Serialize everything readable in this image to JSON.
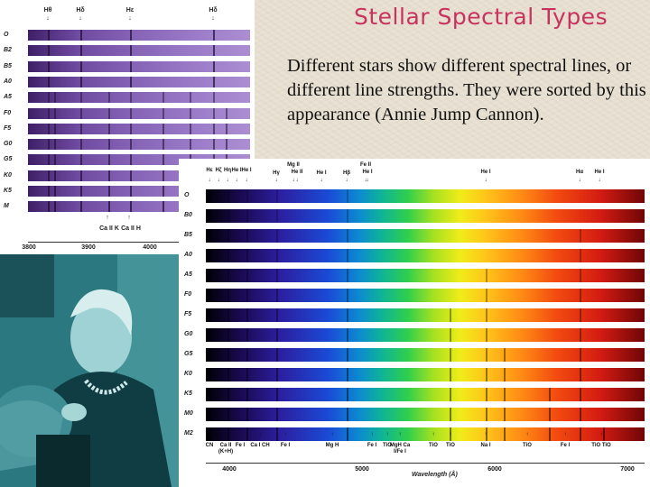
{
  "slide": {
    "title": "Stellar Spectral Types",
    "body": "Different stars show different spectral lines, or different line strengths. They were sorted by this appearance (Annie Jump Cannon)."
  },
  "panel_top": {
    "top_markers": [
      "Hθ",
      "Hδ",
      "Hε",
      "Hδ"
    ],
    "classes": [
      "O",
      "B2",
      "B5",
      "A0",
      "A5",
      "F0",
      "F5",
      "G0",
      "G5",
      "K0",
      "K5",
      "M"
    ],
    "bottom_markers": [
      "Ca II K",
      "Ca II H"
    ],
    "axis_ticks": [
      "3800",
      "3900",
      "4000"
    ]
  },
  "panel_bottom": {
    "top_markers": [
      "Hε",
      "Hζ",
      "Hη",
      "He I",
      "He I",
      "Hγ",
      "Mg II",
      "He II",
      "He I",
      "Hβ",
      "Fe II",
      "He I",
      "He I",
      "Hα",
      "He I"
    ],
    "classes": [
      "O",
      "B0",
      "B5",
      "A0",
      "A5",
      "F0",
      "F5",
      "G0",
      "G5",
      "K0",
      "K5",
      "M0",
      "M2"
    ],
    "bottom_markers": [
      "CN",
      "Ca II (K+H)",
      "Fe I",
      "Ca I CH",
      "Fe I",
      "Mg H",
      "Fe I",
      "TiO",
      "MgH Ca I/Fe I",
      "TiO",
      "TiO",
      "Na I",
      "TiO",
      "Fe I",
      "TiO TiO"
    ],
    "axis_ticks": [
      "4000",
      "5000",
      "6000",
      "7000"
    ],
    "axis_label": "Wavelength (Å)"
  },
  "photo": {
    "icon": "annie-jump-cannon-photo"
  },
  "colors": {
    "title": "#c7325f",
    "background": "#e9e2d4"
  }
}
